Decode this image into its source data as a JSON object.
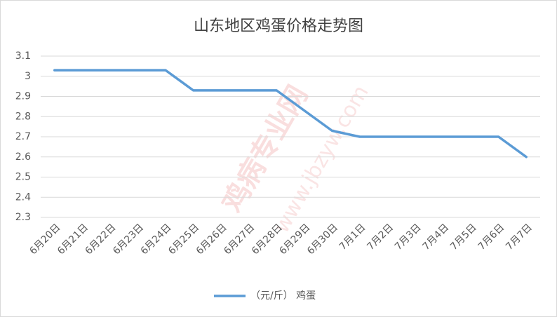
{
  "chart_data": {
    "type": "line",
    "title": "山东地区鸡蛋价格走势图",
    "categories": [
      "6月20日",
      "6月21日",
      "6月22日",
      "6月23日",
      "6月24日",
      "6月25日",
      "6月26日",
      "6月27日",
      "6月28日",
      "6月29日",
      "6月30日",
      "7月1日",
      "7月2日",
      "7月3日",
      "7月4日",
      "7月5日",
      "7月6日",
      "7月7日"
    ],
    "series": [
      {
        "name": "（元/斤） 鸡蛋",
        "color": "#5b9bd5",
        "values": [
          3.03,
          3.03,
          3.03,
          3.03,
          3.03,
          2.93,
          2.93,
          2.93,
          2.93,
          2.83,
          2.73,
          2.7,
          2.7,
          2.7,
          2.7,
          2.7,
          2.7,
          2.6
        ]
      }
    ],
    "ylim": [
      2.3,
      3.1
    ],
    "yticks": [
      2.3,
      2.4,
      2.5,
      2.6,
      2.7,
      2.8,
      2.9,
      3,
      3.1
    ],
    "grid": true,
    "legend": "bottom",
    "watermark": [
      "鸡病专业网",
      "www.jbzyw.com"
    ]
  }
}
